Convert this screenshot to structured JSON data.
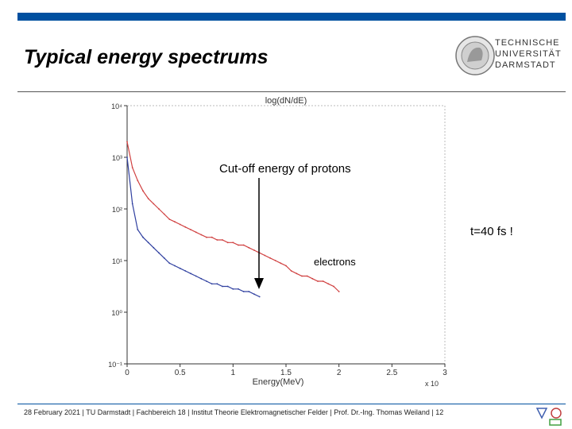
{
  "slide": {
    "title": "Typical energy spectrums",
    "logo": {
      "lines": [
        "TECHNISCHE",
        "UNIVERSITÄT",
        "DARMSTADT"
      ],
      "icon": "tu-darmstadt-athena-seal"
    },
    "annotations": {
      "cutoff": "Cut-off energy of protons",
      "time": "t=40 fs  !",
      "electrons": "electrons"
    },
    "footer": "28 February 2021  |  TU Darmstadt  |  Fachbereich 18  |  Institut Theorie Elektromagnetischer Felder  |  Prof. Dr.-Ing. Thomas Weiland  |  12",
    "colors": {
      "accent": "#0050a0"
    }
  },
  "chart_data": {
    "type": "line",
    "title": "log(dN/dE)",
    "xlabel": "Energy(MeV)",
    "x_multiplier": "x 10",
    "ylabel": "",
    "xlim": [
      0,
      3
    ],
    "ylim": [
      -1,
      4
    ],
    "y_scale": "log",
    "x_ticks": [
      "0",
      "0.5",
      "1",
      "1.5",
      "2",
      "2.5",
      "3"
    ],
    "y_ticks": [
      "10⁻¹",
      "10⁰",
      "10¹",
      "10²",
      "10³",
      "10⁴"
    ],
    "series": [
      {
        "color": "#d04040",
        "x": [
          0.0,
          0.05,
          0.1,
          0.15,
          0.2,
          0.25,
          0.3,
          0.35,
          0.4,
          0.45,
          0.5,
          0.55,
          0.6,
          0.65,
          0.7,
          0.75,
          0.8,
          0.85,
          0.9,
          0.95,
          1.0,
          1.05,
          1.1,
          1.15,
          1.2,
          1.25,
          1.3,
          1.35,
          1.4,
          1.45,
          1.5,
          1.55,
          1.6,
          1.65,
          1.7,
          1.75,
          1.8,
          1.85,
          1.9,
          1.95,
          2.0
        ],
        "y": [
          3.3,
          2.8,
          2.55,
          2.35,
          2.2,
          2.1,
          2.0,
          1.9,
          1.8,
          1.75,
          1.7,
          1.65,
          1.6,
          1.55,
          1.5,
          1.45,
          1.45,
          1.4,
          1.4,
          1.35,
          1.35,
          1.3,
          1.3,
          1.25,
          1.2,
          1.15,
          1.1,
          1.05,
          1.0,
          0.95,
          0.9,
          0.8,
          0.75,
          0.7,
          0.7,
          0.65,
          0.6,
          0.6,
          0.55,
          0.5,
          0.4
        ]
      },
      {
        "color": "#3040a0",
        "x": [
          0.0,
          0.05,
          0.1,
          0.15,
          0.2,
          0.25,
          0.3,
          0.35,
          0.4,
          0.45,
          0.5,
          0.55,
          0.6,
          0.65,
          0.7,
          0.75,
          0.8,
          0.85,
          0.9,
          0.95,
          1.0,
          1.05,
          1.1,
          1.15,
          1.2,
          1.25
        ],
        "y": [
          3.0,
          2.1,
          1.6,
          1.45,
          1.35,
          1.25,
          1.15,
          1.05,
          0.95,
          0.9,
          0.85,
          0.8,
          0.75,
          0.7,
          0.65,
          0.6,
          0.55,
          0.55,
          0.5,
          0.5,
          0.45,
          0.45,
          0.4,
          0.4,
          0.35,
          0.3
        ]
      }
    ]
  }
}
